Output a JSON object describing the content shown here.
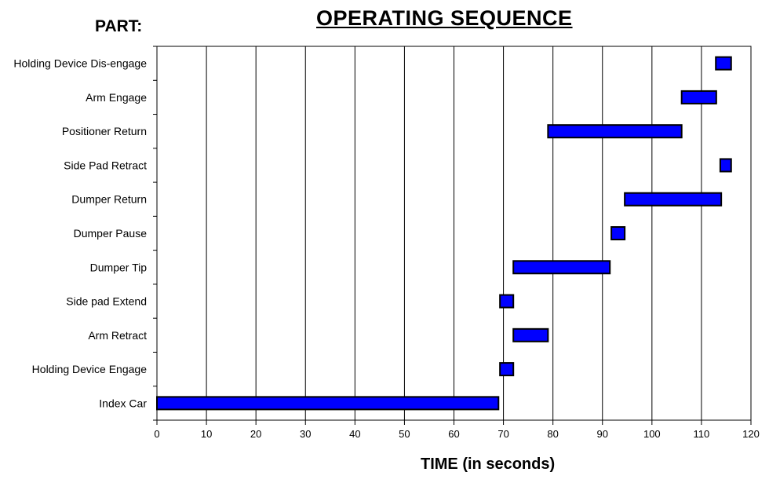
{
  "header": {
    "part_label": "PART:",
    "title": "OPERATING SEQUENCE"
  },
  "chart_data": {
    "type": "bar",
    "orientation": "horizontal-gantt",
    "xlabel": "TIME (in seconds)",
    "xlim": [
      0,
      120
    ],
    "x_ticks": [
      0,
      10,
      20,
      30,
      40,
      50,
      60,
      70,
      80,
      90,
      100,
      110,
      120
    ],
    "grid": "vertical",
    "bar_color": "#0000ff",
    "tasks": [
      {
        "label": "Index Car",
        "start": 0,
        "end": 69
      },
      {
        "label": "Holding Device Engage",
        "start": 69.3,
        "end": 72
      },
      {
        "label": "Arm Retract",
        "start": 72,
        "end": 79
      },
      {
        "label": "Side pad Extend",
        "start": 69.3,
        "end": 72
      },
      {
        "label": "Dumper Tip",
        "start": 72,
        "end": 91.5
      },
      {
        "label": "Dumper Pause",
        "start": 91.8,
        "end": 94.5
      },
      {
        "label": "Dumper Return",
        "start": 94.5,
        "end": 114
      },
      {
        "label": "Side Pad Retract",
        "start": 113.8,
        "end": 116
      },
      {
        "label": "Positioner Return",
        "start": 79,
        "end": 106
      },
      {
        "label": "Arm Engage",
        "start": 106,
        "end": 113
      },
      {
        "label": "Holding Device Dis-engage",
        "start": 112.9,
        "end": 116
      }
    ]
  }
}
